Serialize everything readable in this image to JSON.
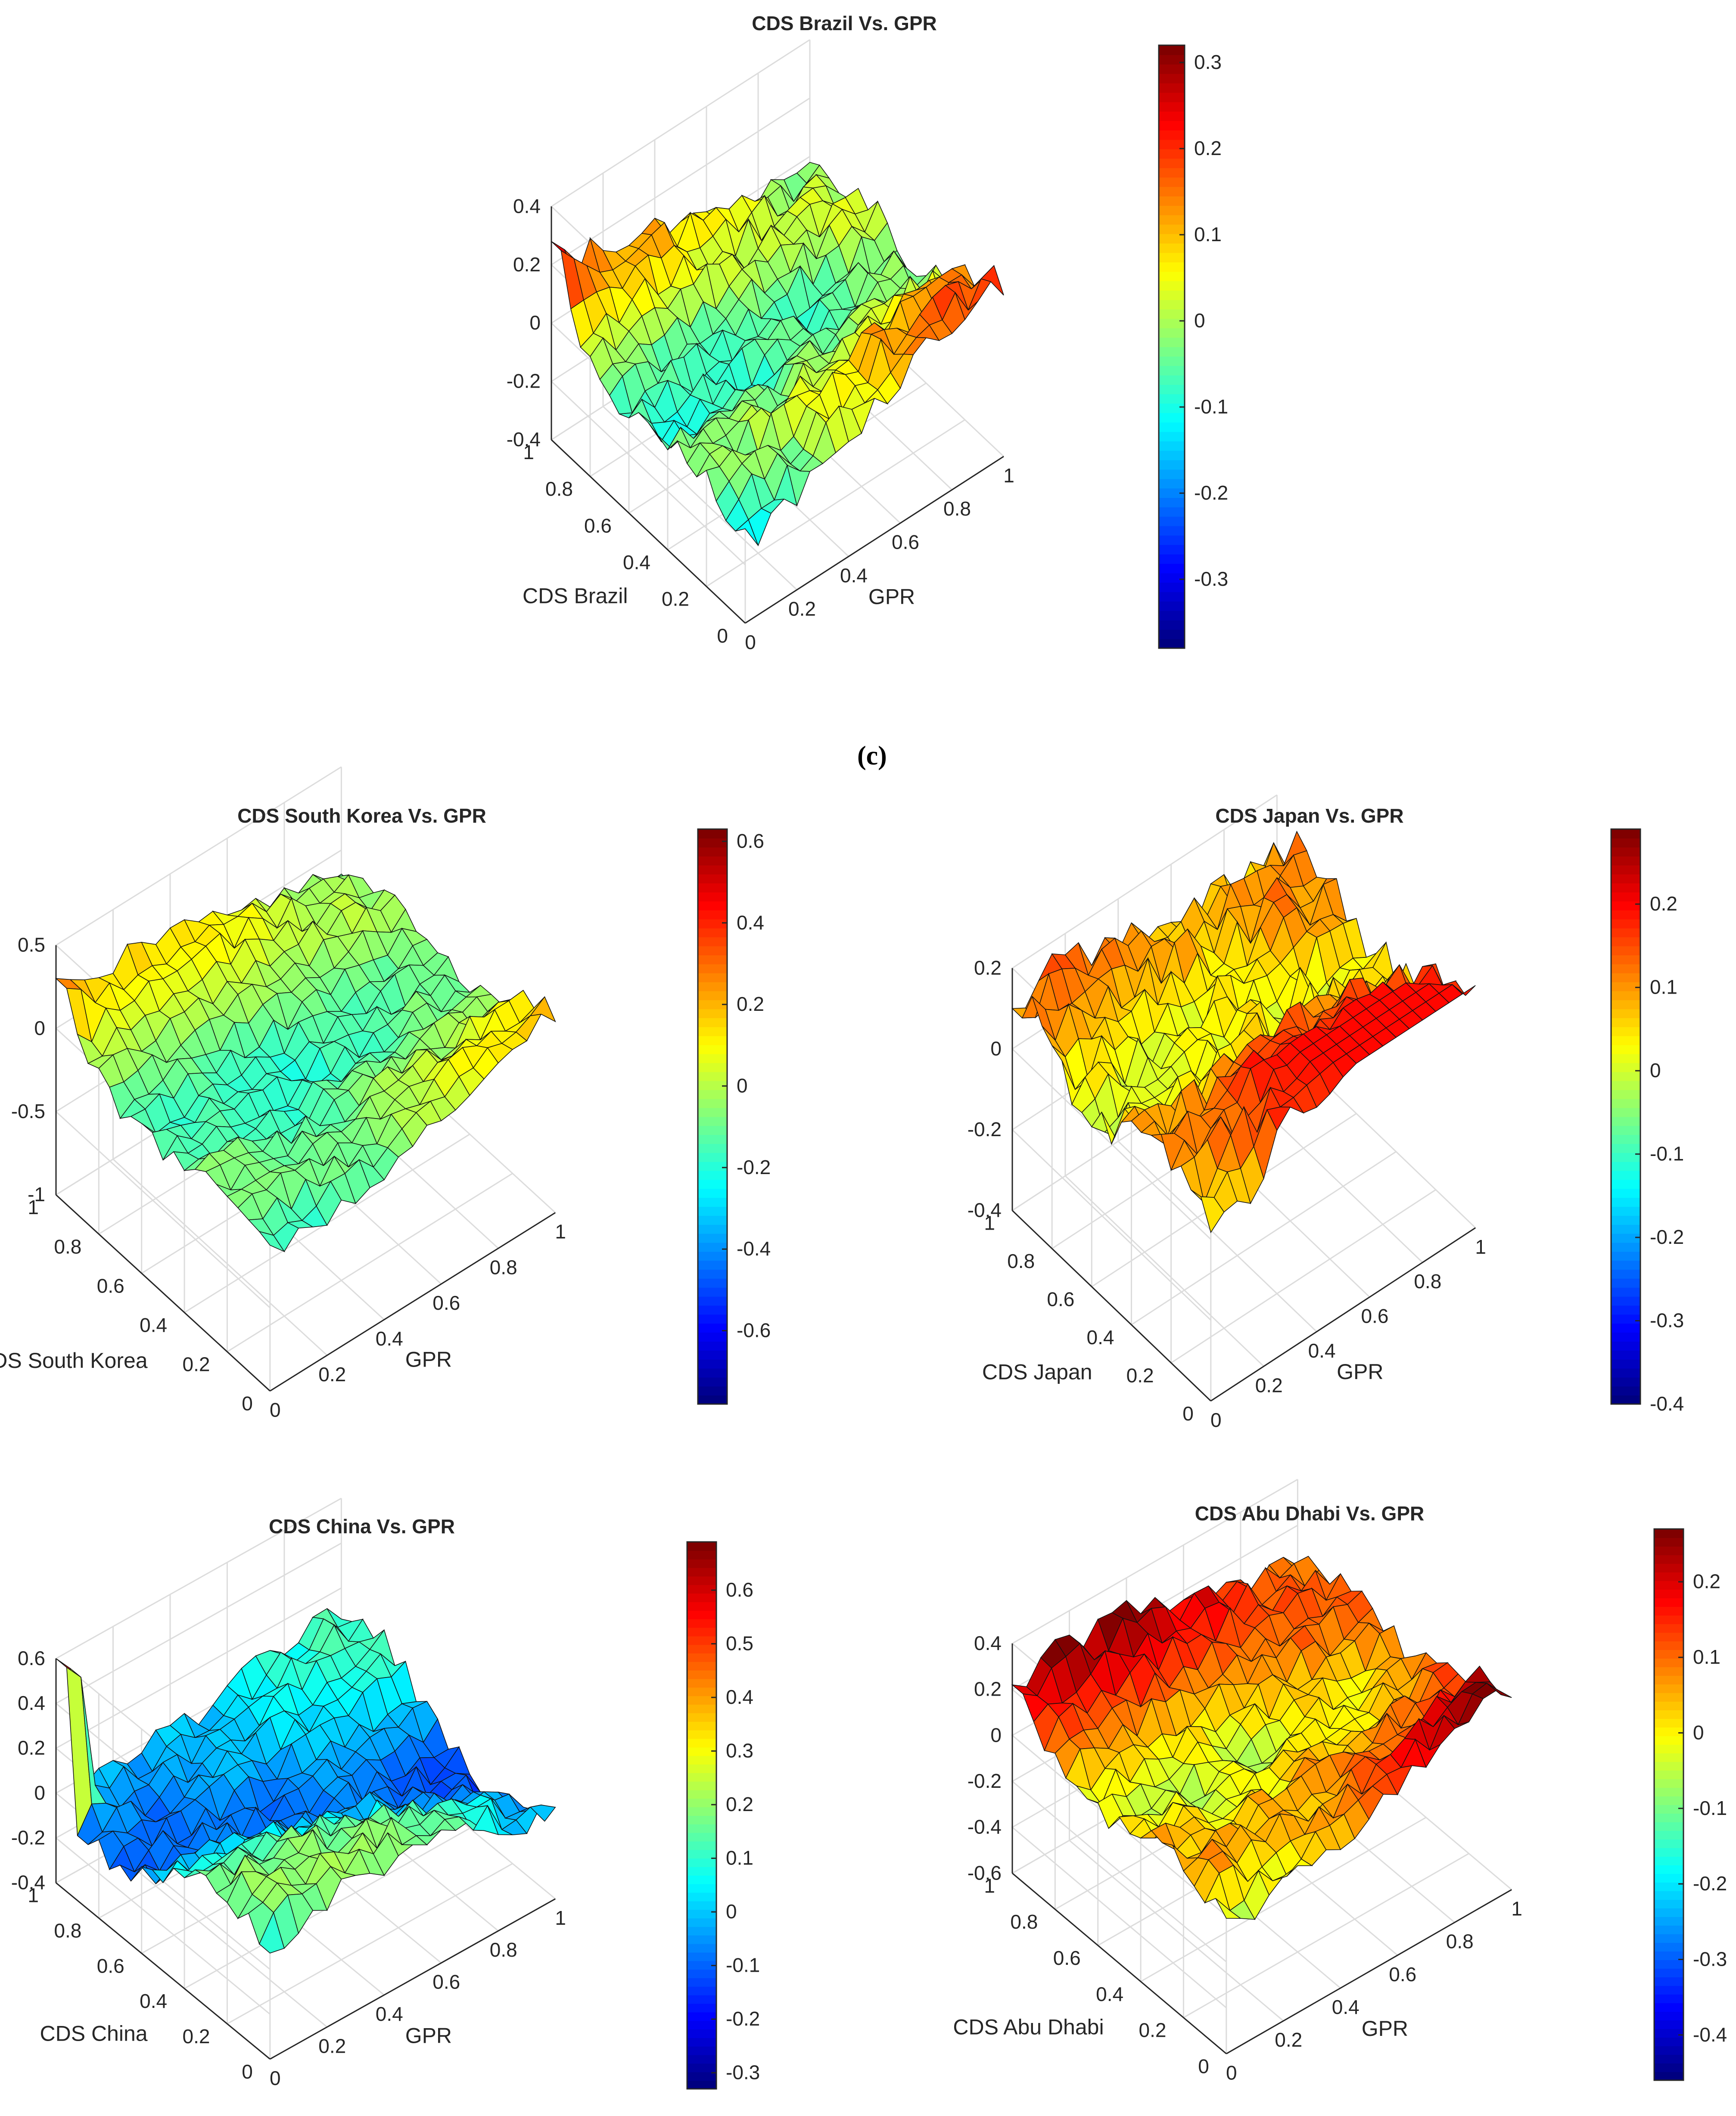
{
  "figure": {
    "panel_label": "(c)"
  },
  "chart_data": [
    {
      "id": "brazil",
      "type": "surface",
      "title": "CDS Brazil Vs. GPR",
      "xlabel": "GPR",
      "ylabel": "CDS Brazil",
      "x_ticks": [
        "0",
        "0.2",
        "0.4",
        "0.6",
        "0.8",
        "1"
      ],
      "y_ticks": [
        "0",
        "0.2",
        "0.4",
        "0.6",
        "0.8",
        "1"
      ],
      "z_range": [
        -0.4,
        0.4
      ],
      "z_ticks": [
        "-0.4",
        "-0.2",
        "0",
        "0.2",
        "0.4"
      ],
      "colorbar_range": [
        -0.38,
        0.32
      ],
      "colorbar_ticks": [
        "-0.3",
        "-0.2",
        "-0.1",
        "0",
        "0.1",
        "0.2",
        "0.3"
      ],
      "surface_seed": 11,
      "surface_offset": 0.0,
      "surface_amp": 0.22,
      "corner_peak": 0.28
    },
    {
      "id": "south_korea",
      "type": "surface",
      "title": "CDS South Korea Vs. GPR",
      "xlabel": "GPR",
      "ylabel": "CDS South Korea",
      "x_ticks": [
        "0",
        "0.2",
        "0.4",
        "0.6",
        "0.8",
        "1"
      ],
      "y_ticks": [
        "0",
        "0.2",
        "0.4",
        "0.6",
        "0.8",
        "1"
      ],
      "z_range": [
        -1,
        0.5
      ],
      "z_ticks": [
        "-1",
        "-0.5",
        "0",
        "0.5"
      ],
      "colorbar_range": [
        -0.78,
        0.63
      ],
      "colorbar_ticks": [
        "-0.6",
        "-0.4",
        "-0.2",
        "0",
        "0.2",
        "0.4",
        "0.6"
      ],
      "surface_seed": 23,
      "surface_offset": -0.05,
      "surface_amp": 0.3,
      "corner_peak": 0.3
    },
    {
      "id": "japan",
      "type": "surface",
      "title": "CDS Japan Vs. GPR",
      "xlabel": "GPR",
      "ylabel": "CDS Japan",
      "x_ticks": [
        "0",
        "0.2",
        "0.4",
        "0.6",
        "0.8",
        "1"
      ],
      "y_ticks": [
        "0",
        "0.2",
        "0.4",
        "0.6",
        "0.8",
        "1"
      ],
      "z_range": [
        -0.4,
        0.2
      ],
      "z_ticks": [
        "-0.4",
        "-0.2",
        "0",
        "0.2"
      ],
      "colorbar_range": [
        -0.4,
        0.29
      ],
      "colorbar_ticks": [
        "-0.4",
        "-0.3",
        "-0.2",
        "-0.1",
        "0",
        "0.1",
        "0.2"
      ],
      "surface_seed": 37,
      "surface_offset": 0.08,
      "surface_amp": 0.22,
      "corner_peak": 0.1
    },
    {
      "id": "china",
      "type": "surface",
      "title": "CDS China Vs. GPR",
      "xlabel": "GPR",
      "ylabel": "CDS China",
      "x_ticks": [
        "0",
        "0.2",
        "0.4",
        "0.6",
        "0.8",
        "1"
      ],
      "y_ticks": [
        "0",
        "0.2",
        "0.4",
        "0.6",
        "0.8",
        "1"
      ],
      "z_range": [
        -0.4,
        0.6
      ],
      "z_ticks": [
        "-0.4",
        "-0.2",
        "0",
        "0.2",
        "0.4",
        "0.6"
      ],
      "colorbar_range": [
        -0.33,
        0.69
      ],
      "colorbar_ticks": [
        "-0.3",
        "-0.2",
        "-0.1",
        "0",
        "0.1",
        "0.2",
        "0.3",
        "0.4",
        "0.5",
        "0.6"
      ],
      "surface_seed": 51,
      "surface_offset": 0.0,
      "surface_amp": 0.25,
      "corner_peak": 0.65
    },
    {
      "id": "abu_dhabi",
      "type": "surface",
      "title": "CDS Abu Dhabi Vs. GPR",
      "xlabel": "GPR",
      "ylabel": "CDS Abu Dhabi",
      "x_ticks": [
        "0",
        "0.2",
        "0.4",
        "0.6",
        "0.8",
        "1"
      ],
      "y_ticks": [
        "0",
        "0.2",
        "0.4",
        "0.6",
        "0.8",
        "1"
      ],
      "z_range": [
        -0.6,
        0.4
      ],
      "z_ticks": [
        "-0.6",
        "-0.4",
        "-0.2",
        "0",
        "0.2",
        "0.4"
      ],
      "colorbar_range": [
        -0.46,
        0.27
      ],
      "colorbar_ticks": [
        "-0.4",
        "-0.3",
        "-0.2",
        "-0.1",
        "0",
        "0.1",
        "0.2"
      ],
      "surface_seed": 67,
      "surface_offset": 0.08,
      "surface_amp": 0.25,
      "corner_peak": 0.22
    }
  ]
}
